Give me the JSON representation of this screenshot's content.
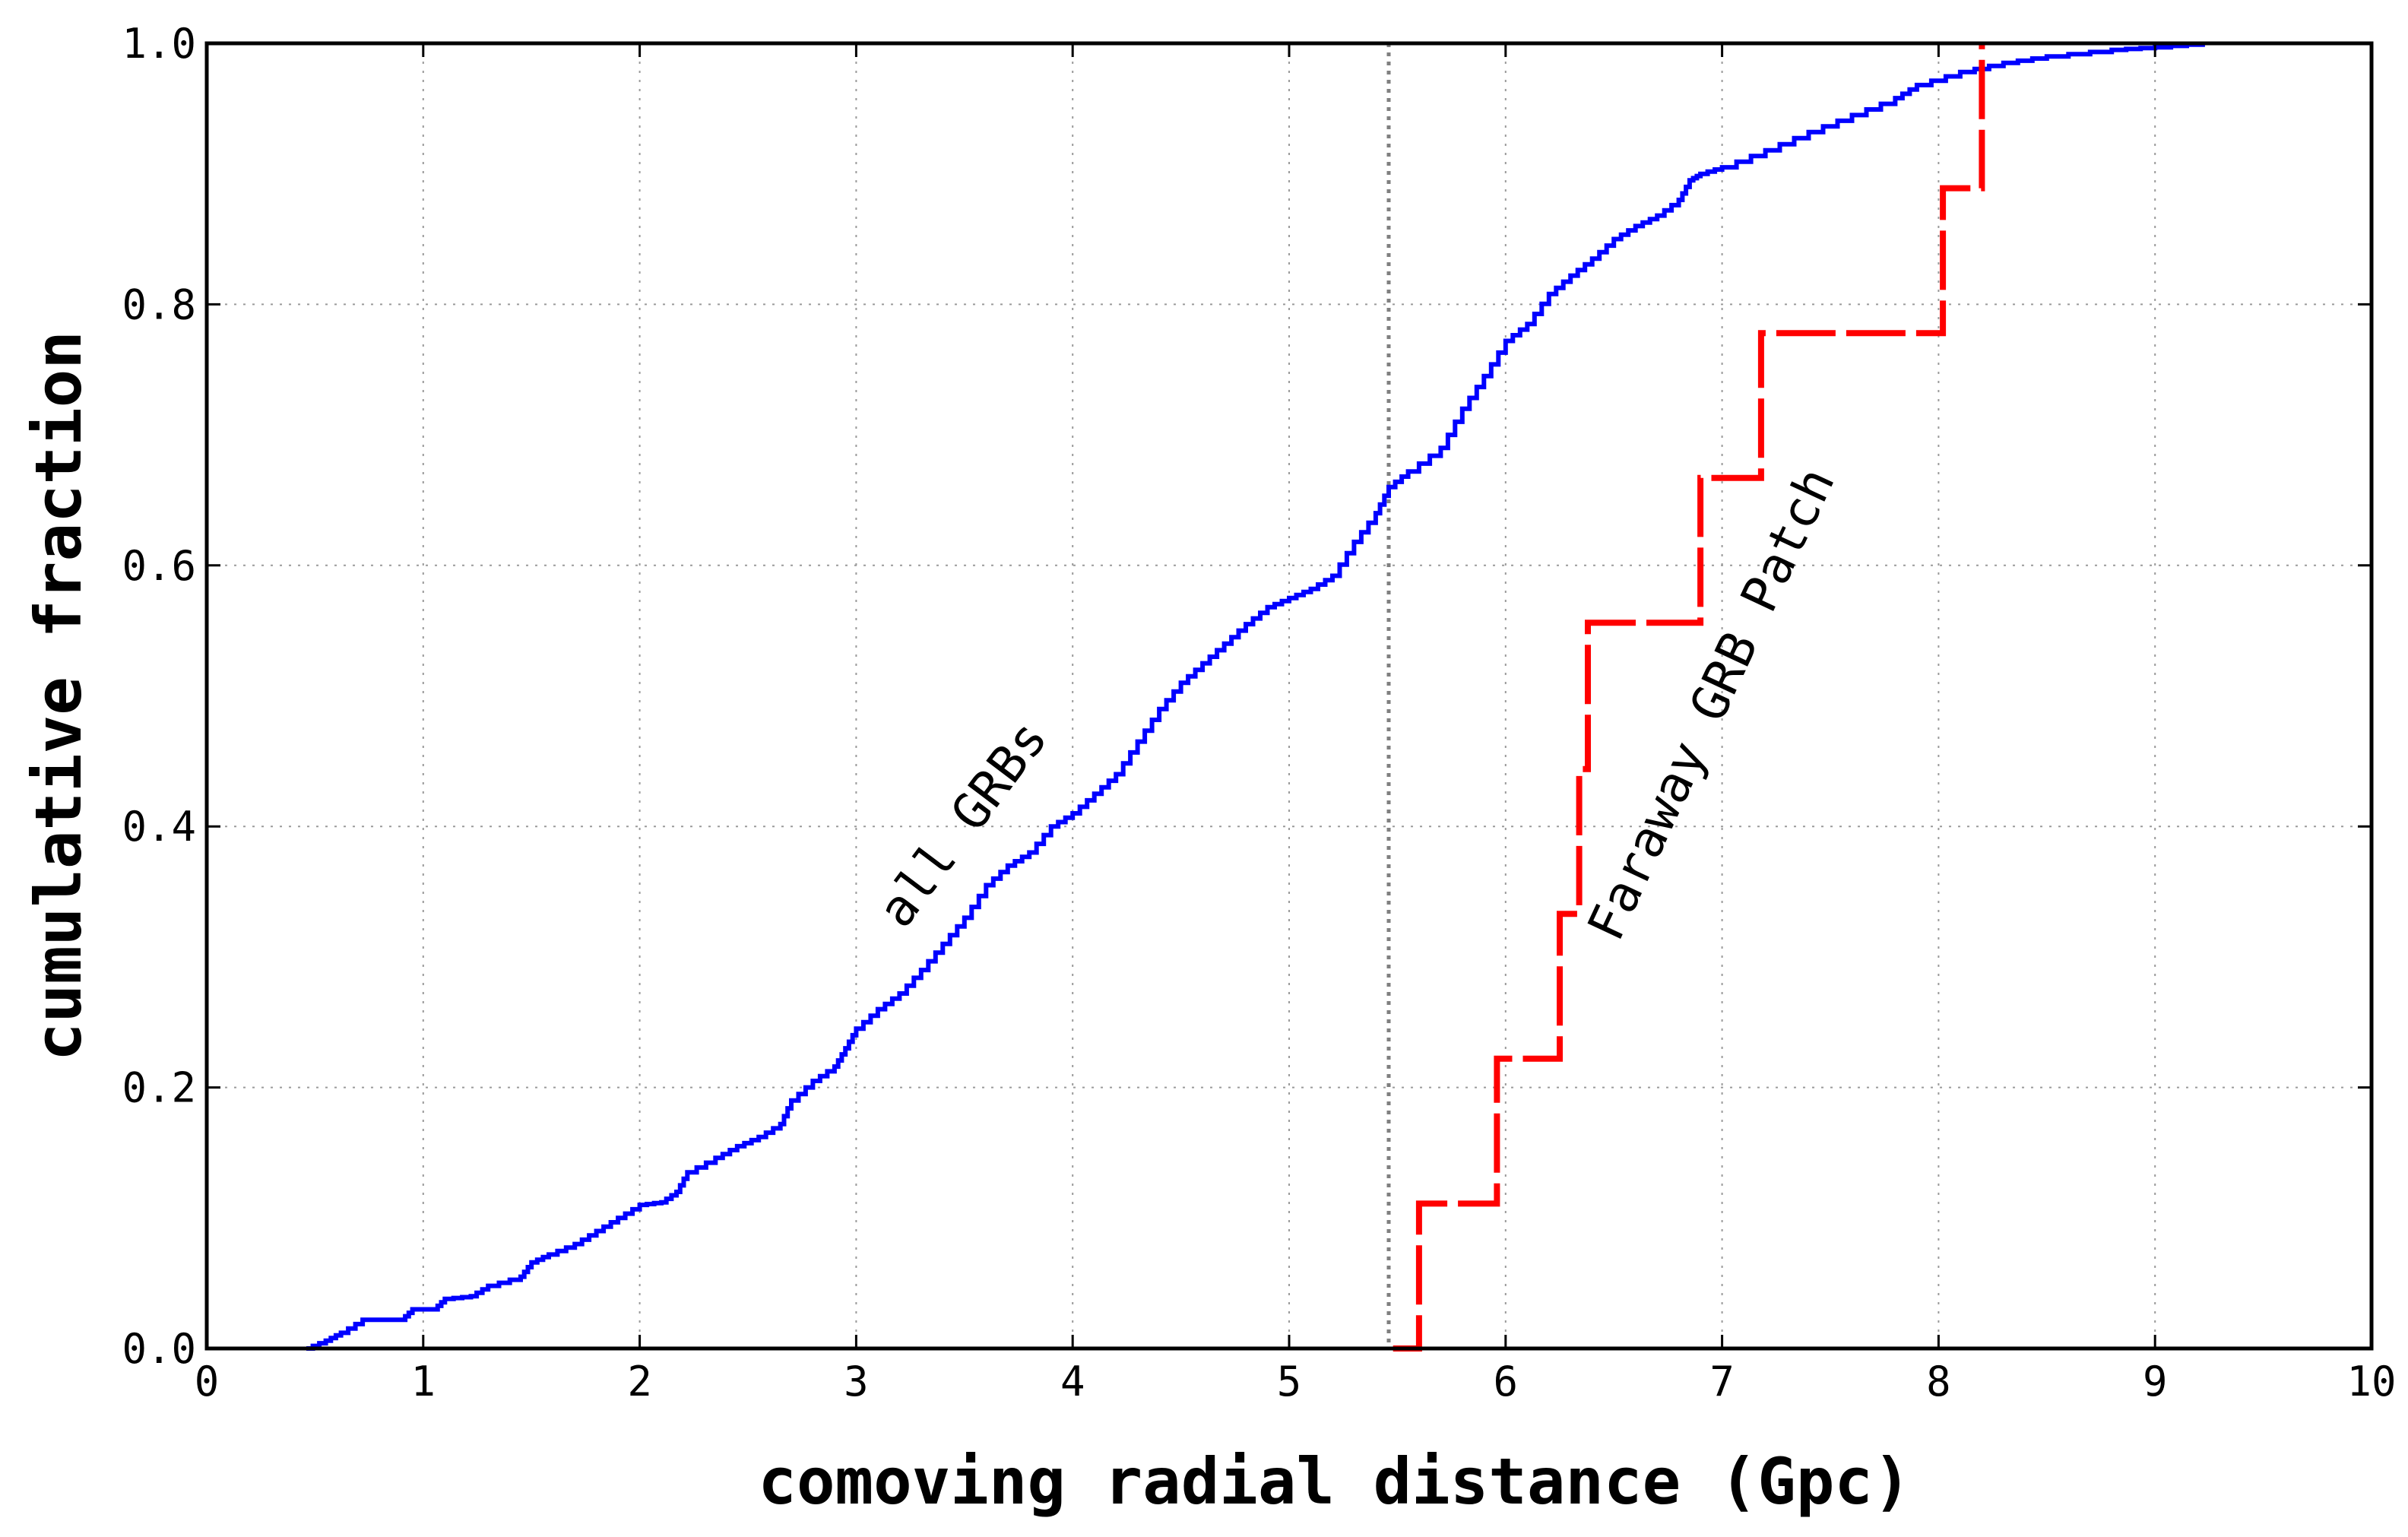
{
  "chart_data": {
    "type": "line",
    "title": "",
    "xlabel": "comoving radial distance (Gpc)",
    "ylabel": "cumulative fraction",
    "xlim": [
      0,
      10
    ],
    "ylim": [
      0,
      1
    ],
    "grid": true,
    "x_ticks": [
      "0",
      "1",
      "2",
      "3",
      "4",
      "5",
      "6",
      "7",
      "8",
      "9",
      "10"
    ],
    "y_ticks": [
      "0.0",
      "0.2",
      "0.4",
      "0.6",
      "0.8",
      "1.0"
    ],
    "reference_line": {
      "x": 5.46,
      "style": "dotted",
      "color": "#808080"
    },
    "annotations": [
      {
        "text": "all GRBs",
        "x": 3.22,
        "y": 0.32,
        "rotation": 53
      },
      {
        "text": "Faraway GRB Patch",
        "x": 6.52,
        "y": 0.31,
        "rotation": 65
      }
    ],
    "series": [
      {
        "color": "#0000ff",
        "style": "solid",
        "points": [
          [
            0.46,
            0.0
          ],
          [
            0.55,
            0.006
          ],
          [
            0.62,
            0.012
          ],
          [
            0.72,
            0.022
          ],
          [
            0.9,
            0.022
          ],
          [
            0.95,
            0.03
          ],
          [
            1.05,
            0.03
          ],
          [
            1.1,
            0.038
          ],
          [
            1.22,
            0.04
          ],
          [
            1.3,
            0.048
          ],
          [
            1.45,
            0.055
          ],
          [
            1.5,
            0.066
          ],
          [
            1.58,
            0.072
          ],
          [
            1.7,
            0.08
          ],
          [
            1.8,
            0.09
          ],
          [
            1.9,
            0.1
          ],
          [
            2.0,
            0.11
          ],
          [
            2.1,
            0.112
          ],
          [
            2.17,
            0.12
          ],
          [
            2.22,
            0.135
          ],
          [
            2.35,
            0.146
          ],
          [
            2.45,
            0.155
          ],
          [
            2.55,
            0.162
          ],
          [
            2.65,
            0.172
          ],
          [
            2.7,
            0.19
          ],
          [
            2.8,
            0.205
          ],
          [
            2.9,
            0.216
          ],
          [
            2.95,
            0.23
          ],
          [
            3.0,
            0.245
          ],
          [
            3.1,
            0.26
          ],
          [
            3.2,
            0.272
          ],
          [
            3.3,
            0.29
          ],
          [
            3.4,
            0.31
          ],
          [
            3.5,
            0.33
          ],
          [
            3.6,
            0.355
          ],
          [
            3.7,
            0.37
          ],
          [
            3.8,
            0.38
          ],
          [
            3.9,
            0.4
          ],
          [
            4.0,
            0.41
          ],
          [
            4.1,
            0.425
          ],
          [
            4.2,
            0.44
          ],
          [
            4.3,
            0.465
          ],
          [
            4.4,
            0.49
          ],
          [
            4.5,
            0.51
          ],
          [
            4.6,
            0.525
          ],
          [
            4.7,
            0.54
          ],
          [
            4.8,
            0.555
          ],
          [
            4.9,
            0.568
          ],
          [
            5.0,
            0.575
          ],
          [
            5.1,
            0.582
          ],
          [
            5.2,
            0.592
          ],
          [
            5.3,
            0.618
          ],
          [
            5.4,
            0.64
          ],
          [
            5.46,
            0.66
          ],
          [
            5.55,
            0.672
          ],
          [
            5.7,
            0.69
          ],
          [
            5.8,
            0.72
          ],
          [
            5.9,
            0.745
          ],
          [
            6.0,
            0.772
          ],
          [
            6.1,
            0.785
          ],
          [
            6.2,
            0.808
          ],
          [
            6.3,
            0.822
          ],
          [
            6.4,
            0.835
          ],
          [
            6.5,
            0.85
          ],
          [
            6.6,
            0.86
          ],
          [
            6.7,
            0.868
          ],
          [
            6.8,
            0.88
          ],
          [
            6.85,
            0.895
          ],
          [
            6.9,
            0.9
          ],
          [
            7.0,
            0.905
          ],
          [
            7.2,
            0.918
          ],
          [
            7.4,
            0.932
          ],
          [
            7.6,
            0.945
          ],
          [
            7.8,
            0.958
          ],
          [
            7.9,
            0.968
          ],
          [
            8.1,
            0.978
          ],
          [
            8.3,
            0.985
          ],
          [
            8.5,
            0.99
          ],
          [
            8.8,
            0.995
          ],
          [
            9.0,
            0.997
          ],
          [
            9.22,
            1.0
          ]
        ]
      },
      {
        "color": "#ff0000",
        "style": "dashed",
        "points": [
          [
            5.48,
            0.0
          ],
          [
            5.6,
            0.0
          ],
          [
            5.6,
            0.111
          ],
          [
            5.96,
            0.111
          ],
          [
            5.96,
            0.222
          ],
          [
            6.25,
            0.222
          ],
          [
            6.25,
            0.333
          ],
          [
            6.34,
            0.333
          ],
          [
            6.34,
            0.444
          ],
          [
            6.38,
            0.444
          ],
          [
            6.38,
            0.556
          ],
          [
            6.9,
            0.556
          ],
          [
            6.9,
            0.667
          ],
          [
            7.18,
            0.667
          ],
          [
            7.18,
            0.778
          ],
          [
            8.02,
            0.778
          ],
          [
            8.02,
            0.889
          ],
          [
            8.2,
            0.889
          ],
          [
            8.2,
            1.0
          ]
        ]
      }
    ]
  }
}
